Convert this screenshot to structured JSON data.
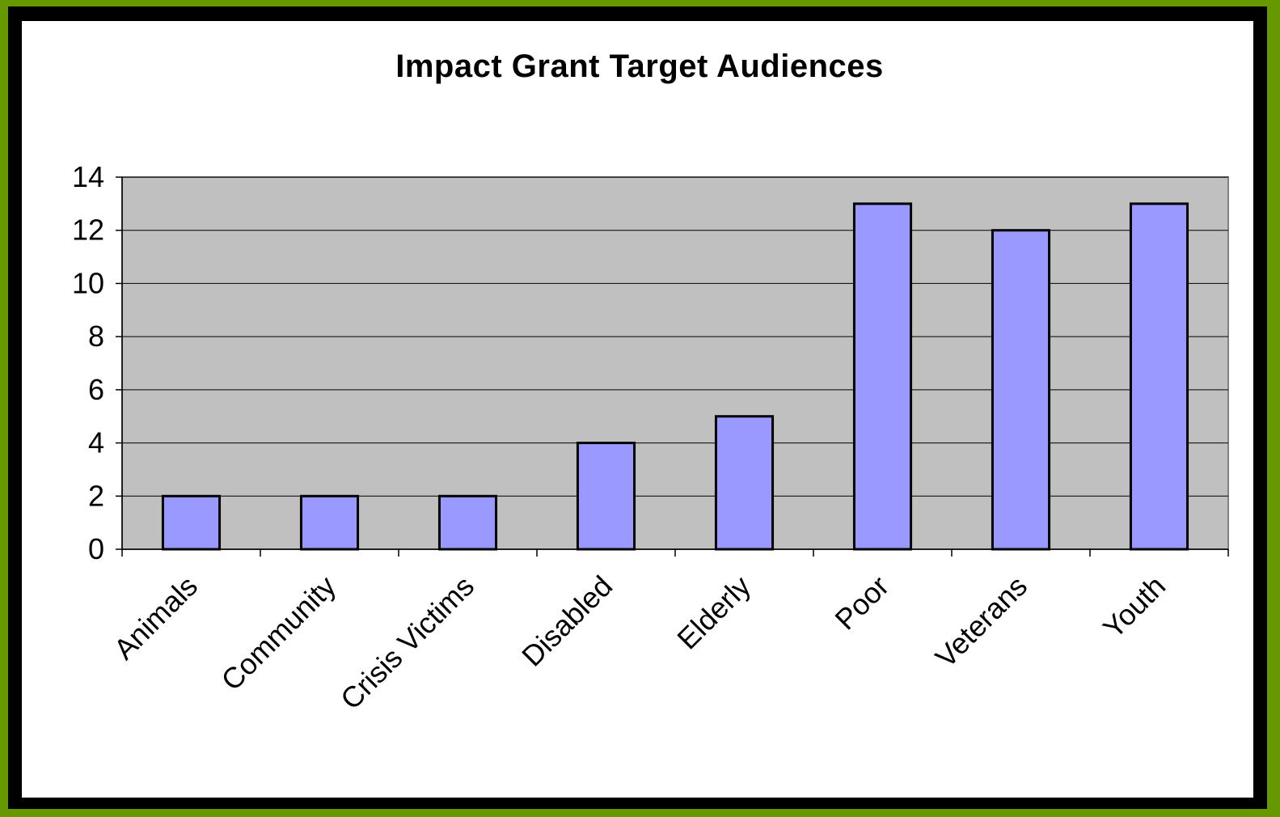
{
  "chart_data": {
    "type": "bar",
    "title": "Impact Grant Target Audiences",
    "xlabel": "",
    "ylabel": "",
    "categories": [
      "Animals",
      "Community",
      "Crisis Victims",
      "Disabled",
      "Elderly",
      "Poor",
      "Veterans",
      "Youth"
    ],
    "values": [
      2,
      2,
      2,
      4,
      5,
      13,
      12,
      13
    ],
    "ylim": [
      0,
      14
    ],
    "yticks": [
      0,
      2,
      4,
      6,
      8,
      10,
      12,
      14
    ],
    "grid": true,
    "legend": "none",
    "colors": {
      "bar_fill": "#9999ff",
      "bar_stroke": "#000000",
      "plot_background": "#c0c0c0",
      "frame": "#669900"
    }
  }
}
